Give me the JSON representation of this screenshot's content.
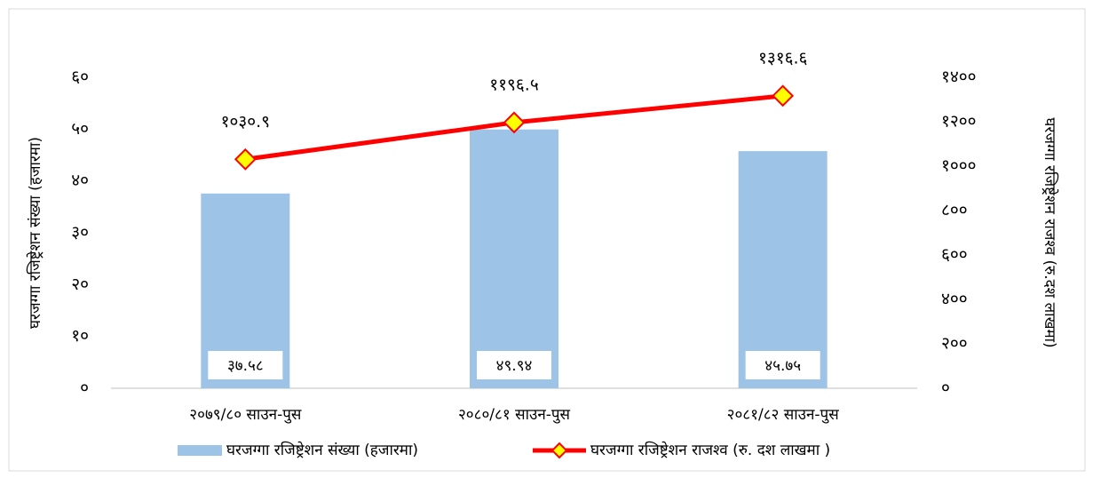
{
  "chart_data": {
    "type": "bar",
    "categories": [
      "२०७९/८० साउन-पुस",
      "२०८०/८१ साउन-पुस",
      "२०८१/८२ साउन-पुस"
    ],
    "series": [
      {
        "name": "घरजग्गा रजिष्ट्रेशन संख्या (हजारमा)",
        "type": "bar",
        "color": "#9dc3e6",
        "values": [
          37.58,
          49.94,
          45.75
        ],
        "value_labels": [
          "३७.५८",
          "४९.९४",
          "४५.७५"
        ]
      },
      {
        "name": "घरजग्गा रजिष्ट्रेशन राजश्व (रु. दश लाखमा )",
        "type": "line",
        "axis": "y2",
        "color": "#ff0000",
        "marker_color": "#ffff00",
        "values": [
          1030.9,
          1196.5,
          1316.6
        ],
        "value_labels": [
          "१०३०.९",
          "११९६.५",
          "१३१६.६"
        ]
      }
    ],
    "ylabel": "घरजग्गा रजिष्ट्रेशन संख्या (हजारमा)",
    "y2label": "घरजग्गा रजिष्ट्रेशन राजश्व (रु.दश लाखमा)",
    "ylim": [
      0,
      60
    ],
    "yticks": [
      {
        "value": 0,
        "label": "०"
      },
      {
        "value": 10,
        "label": "१०"
      },
      {
        "value": 20,
        "label": "२०"
      },
      {
        "value": 30,
        "label": "३०"
      },
      {
        "value": 40,
        "label": "४०"
      },
      {
        "value": 50,
        "label": "५०"
      },
      {
        "value": 60,
        "label": "६०"
      }
    ],
    "y2lim": [
      0,
      1400
    ],
    "y2ticks": [
      {
        "value": 0,
        "label": "०"
      },
      {
        "value": 200,
        "label": "२००"
      },
      {
        "value": 400,
        "label": "४००"
      },
      {
        "value": 600,
        "label": "६००"
      },
      {
        "value": 800,
        "label": "८००"
      },
      {
        "value": 1000,
        "label": "१०००"
      },
      {
        "value": 1200,
        "label": "१२००"
      },
      {
        "value": 1400,
        "label": "१४००"
      }
    ],
    "grid": false,
    "legend": "bottom"
  }
}
